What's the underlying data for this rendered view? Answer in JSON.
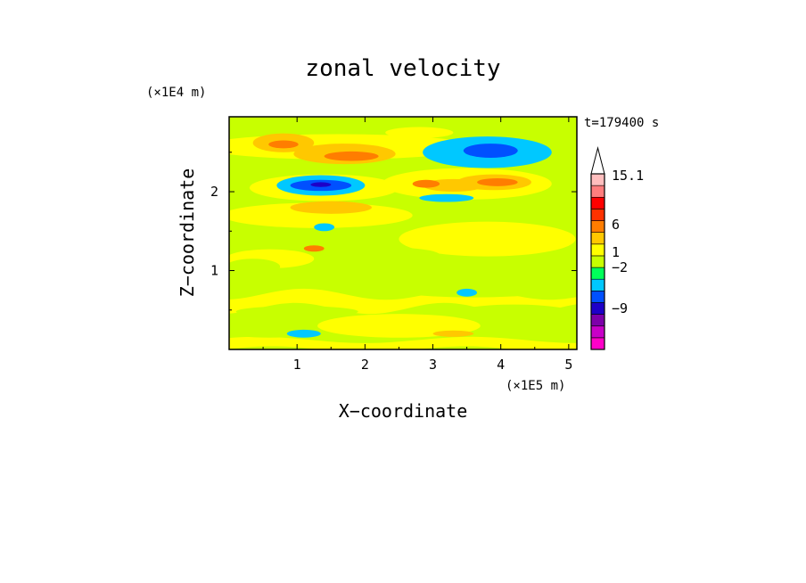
{
  "chart_data": {
    "type": "heatmap",
    "title": "zonal velocity",
    "xlabel": "X−coordinate",
    "ylabel": "Z−coordinate",
    "x_scale_label": "(×1E5 m)",
    "y_scale_label": "(×1E4 m)",
    "time_label": "t=179400 s",
    "xlim": [
      0,
      5.12
    ],
    "ylim": [
      0,
      2.95
    ],
    "x_ticks": [
      1,
      2,
      3,
      4,
      5
    ],
    "y_ticks": [
      1,
      2
    ],
    "grid": false,
    "colorbar": {
      "placement": "right",
      "labels": [
        {
          "text": "15.1",
          "value": 15.1
        },
        {
          "text": "6",
          "value": 6
        },
        {
          "text": "1",
          "value": 1
        },
        {
          "text": "−2",
          "value": -2
        },
        {
          "text": "−9",
          "value": -9
        }
      ],
      "colors": [
        "#ff00c8",
        "#c800c8",
        "#7d00aa",
        "#1e00c8",
        "#0050ff",
        "#00c8ff",
        "#00ff5a",
        "#c8ff00",
        "#ffff00",
        "#ffc800",
        "#ff7d00",
        "#ff3200",
        "#ff0000",
        "#ff7d7d",
        "#ffbebe"
      ]
    },
    "field": {
      "background_level": 7,
      "features": [
        {
          "x": 1.4,
          "z": 2.52,
          "rx": 0.28,
          "rz": 0.06,
          "level": 8
        },
        {
          "x": 1.6,
          "z": 2.57,
          "rx": 2.0,
          "rz": 0.16,
          "level": 8
        },
        {
          "x": 0.8,
          "z": 2.62,
          "rx": 0.45,
          "rz": 0.12,
          "level": 9
        },
        {
          "x": 0.8,
          "z": 2.6,
          "rx": 0.22,
          "rz": 0.05,
          "level": 10
        },
        {
          "x": 1.7,
          "z": 2.48,
          "rx": 0.75,
          "rz": 0.13,
          "level": 9
        },
        {
          "x": 1.8,
          "z": 2.45,
          "rx": 0.4,
          "rz": 0.06,
          "level": 10
        },
        {
          "x": 3.8,
          "z": 2.5,
          "rx": 0.95,
          "rz": 0.2,
          "level": 5
        },
        {
          "x": 3.85,
          "z": 2.52,
          "rx": 0.4,
          "rz": 0.09,
          "level": 4
        },
        {
          "x": 2.8,
          "z": 2.75,
          "rx": 0.5,
          "rz": 0.07,
          "level": 8
        },
        {
          "x": 1.4,
          "z": 2.05,
          "rx": 1.1,
          "rz": 0.17,
          "level": 8
        },
        {
          "x": 1.35,
          "z": 2.08,
          "rx": 0.65,
          "rz": 0.13,
          "level": 5
        },
        {
          "x": 1.35,
          "z": 2.08,
          "rx": 0.45,
          "rz": 0.07,
          "level": 4
        },
        {
          "x": 1.35,
          "z": 2.09,
          "rx": 0.15,
          "rz": 0.03,
          "level": 3
        },
        {
          "x": 3.5,
          "z": 2.1,
          "rx": 1.25,
          "rz": 0.2,
          "level": 8
        },
        {
          "x": 3.3,
          "z": 2.08,
          "rx": 0.45,
          "rz": 0.08,
          "level": 9
        },
        {
          "x": 3.9,
          "z": 2.12,
          "rx": 0.55,
          "rz": 0.1,
          "level": 9
        },
        {
          "x": 3.95,
          "z": 2.12,
          "rx": 0.3,
          "rz": 0.05,
          "level": 10
        },
        {
          "x": 2.9,
          "z": 2.1,
          "rx": 0.2,
          "rz": 0.05,
          "level": 10
        },
        {
          "x": 1.3,
          "z": 1.7,
          "rx": 1.4,
          "rz": 0.16,
          "level": 8
        },
        {
          "x": 1.5,
          "z": 1.8,
          "rx": 0.6,
          "rz": 0.08,
          "level": 9
        },
        {
          "x": 1.4,
          "z": 1.55,
          "rx": 0.15,
          "rz": 0.05,
          "level": 5
        },
        {
          "x": 3.9,
          "z": 1.7,
          "rx": 1.2,
          "rz": 0.09,
          "level": 7
        },
        {
          "x": 3.2,
          "z": 1.92,
          "rx": 0.4,
          "rz": 0.05,
          "level": 5
        },
        {
          "x": 3.8,
          "z": 1.4,
          "rx": 1.3,
          "rz": 0.22,
          "level": 8
        },
        {
          "x": 2.2,
          "z": 1.2,
          "rx": 0.9,
          "rz": 0.1,
          "level": 7
        },
        {
          "x": 0.6,
          "z": 1.15,
          "rx": 0.65,
          "rz": 0.12,
          "level": 8
        },
        {
          "x": 1.25,
          "z": 1.28,
          "rx": 0.15,
          "rz": 0.04,
          "level": 10
        },
        {
          "x": 0.35,
          "z": 1.05,
          "rx": 0.4,
          "rz": 0.1,
          "level": 7
        },
        {
          "x": 3.6,
          "z": 0.8,
          "rx": 1.4,
          "rz": 0.14,
          "level": 7
        },
        {
          "x": 1.0,
          "z": 0.48,
          "rx": 0.9,
          "rz": 0.07,
          "level": 7
        },
        {
          "x": 4.2,
          "z": 0.45,
          "rx": 0.9,
          "rz": 0.12,
          "level": 7
        },
        {
          "x": 3.5,
          "z": 0.72,
          "rx": 0.15,
          "rz": 0.05,
          "level": 5
        },
        {
          "x": 2.5,
          "z": 0.3,
          "rx": 1.2,
          "rz": 0.15,
          "level": 8
        },
        {
          "x": 0.6,
          "z": 0.2,
          "rx": 0.6,
          "rz": 0.05,
          "level": 7
        },
        {
          "x": 1.1,
          "z": 0.2,
          "rx": 0.25,
          "rz": 0.05,
          "level": 5
        },
        {
          "x": 3.3,
          "z": 0.2,
          "rx": 0.3,
          "rz": 0.04,
          "level": 9
        }
      ]
    }
  }
}
